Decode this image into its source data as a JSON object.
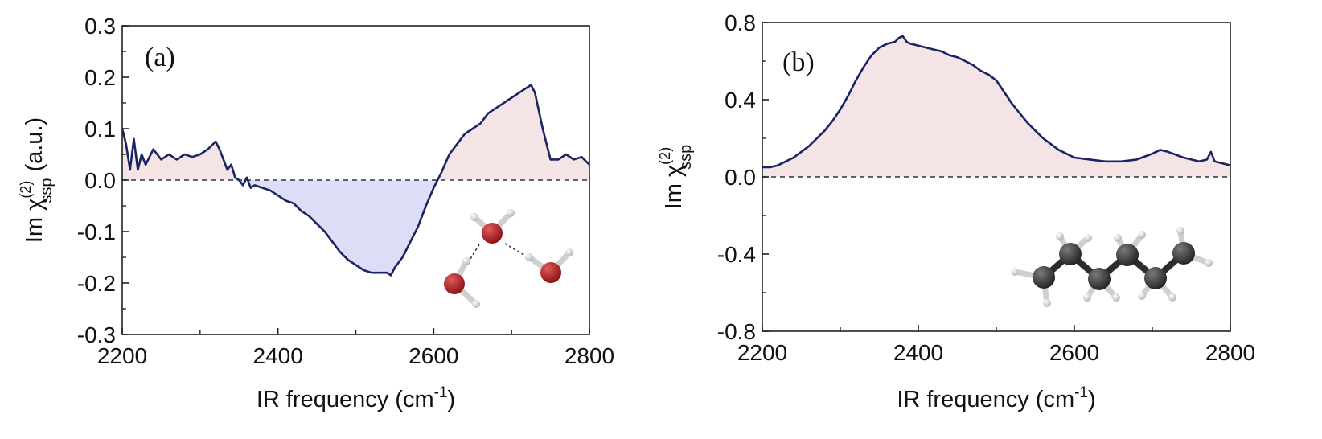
{
  "chart_data": [
    {
      "type": "line",
      "panel_label": "(a)",
      "xlabel": "IR frequency (cm",
      "xlabel_sup": "-1",
      "xlabel_end": ")",
      "ylabel_prefix": "Im χ",
      "ylabel_sup": "(2)",
      "ylabel_sub": "ssp",
      "ylabel_suffix": "(a.u.)",
      "xlim": [
        2200,
        2800
      ],
      "ylim": [
        -0.3,
        0.3
      ],
      "xticks": [
        "2200",
        "2400",
        "2600",
        "2800"
      ],
      "yticks": [
        "-0.3",
        "-0.2",
        "-0.1",
        "0.0",
        "0.1",
        "0.2",
        "0.3"
      ],
      "zero_line": true,
      "fill_positive": "#f5e4e6",
      "fill_negative": "#dcddf6",
      "line_color": "#1b2463",
      "inset": "water-molecules",
      "series": [
        {
          "name": "Im chi(2) ssp",
          "x": [
            2200,
            2205,
            2210,
            2215,
            2220,
            2225,
            2230,
            2240,
            2250,
            2260,
            2270,
            2280,
            2290,
            2300,
            2310,
            2320,
            2325,
            2330,
            2335,
            2340,
            2345,
            2350,
            2355,
            2360,
            2365,
            2370,
            2380,
            2390,
            2400,
            2410,
            2420,
            2430,
            2440,
            2450,
            2460,
            2470,
            2480,
            2490,
            2500,
            2510,
            2520,
            2530,
            2540,
            2545,
            2550,
            2560,
            2570,
            2580,
            2590,
            2600,
            2610,
            2620,
            2630,
            2640,
            2650,
            2660,
            2670,
            2680,
            2690,
            2700,
            2710,
            2720,
            2725,
            2730,
            2740,
            2750,
            2760,
            2770,
            2780,
            2790,
            2800
          ],
          "y": [
            0.1,
            0.07,
            0.02,
            0.08,
            0.02,
            0.05,
            0.03,
            0.06,
            0.04,
            0.05,
            0.04,
            0.05,
            0.045,
            0.05,
            0.06,
            0.075,
            0.06,
            0.04,
            0.02,
            0.03,
            0.005,
            0.0,
            -0.01,
            0.005,
            -0.015,
            -0.01,
            -0.015,
            -0.02,
            -0.03,
            -0.04,
            -0.045,
            -0.06,
            -0.07,
            -0.085,
            -0.1,
            -0.12,
            -0.14,
            -0.155,
            -0.165,
            -0.175,
            -0.18,
            -0.18,
            -0.18,
            -0.185,
            -0.17,
            -0.15,
            -0.12,
            -0.09,
            -0.05,
            -0.015,
            0.015,
            0.05,
            0.07,
            0.09,
            0.1,
            0.11,
            0.13,
            0.14,
            0.15,
            0.16,
            0.17,
            0.18,
            0.185,
            0.17,
            0.1,
            0.04,
            0.04,
            0.05,
            0.04,
            0.045,
            0.03
          ]
        }
      ]
    },
    {
      "type": "line",
      "panel_label": "(b)",
      "xlabel": "IR frequency (cm",
      "xlabel_sup": "-1",
      "xlabel_end": ")",
      "ylabel_prefix": "Im χ",
      "ylabel_sup": "(2)",
      "ylabel_sub": "ssp",
      "ylabel_suffix": "",
      "xlim": [
        2200,
        2800
      ],
      "ylim": [
        -0.8,
        0.8
      ],
      "xticks": [
        "2200",
        "2400",
        "2600",
        "2800"
      ],
      "yticks": [
        "-0.8",
        "-0.4",
        "0.0",
        "0.4",
        "0.8"
      ],
      "zero_line": true,
      "fill_positive": "#f5e4e6",
      "fill_negative": "#dcddf6",
      "line_color": "#1b2463",
      "inset": "alkane-chain",
      "series": [
        {
          "name": "Im chi(2) ssp",
          "x": [
            2200,
            2210,
            2220,
            2230,
            2240,
            2250,
            2260,
            2270,
            2280,
            2290,
            2300,
            2310,
            2320,
            2330,
            2340,
            2350,
            2360,
            2370,
            2375,
            2380,
            2385,
            2390,
            2400,
            2410,
            2420,
            2430,
            2440,
            2450,
            2460,
            2470,
            2480,
            2490,
            2500,
            2510,
            2520,
            2530,
            2540,
            2550,
            2560,
            2570,
            2580,
            2590,
            2600,
            2620,
            2640,
            2660,
            2680,
            2700,
            2710,
            2720,
            2740,
            2760,
            2770,
            2775,
            2780,
            2790,
            2800
          ],
          "y": [
            0.05,
            0.05,
            0.06,
            0.08,
            0.1,
            0.13,
            0.16,
            0.2,
            0.24,
            0.29,
            0.35,
            0.42,
            0.5,
            0.57,
            0.63,
            0.67,
            0.69,
            0.7,
            0.72,
            0.73,
            0.7,
            0.69,
            0.68,
            0.67,
            0.66,
            0.65,
            0.63,
            0.62,
            0.6,
            0.58,
            0.55,
            0.53,
            0.5,
            0.44,
            0.38,
            0.33,
            0.28,
            0.24,
            0.2,
            0.17,
            0.14,
            0.12,
            0.1,
            0.09,
            0.08,
            0.08,
            0.09,
            0.12,
            0.14,
            0.13,
            0.1,
            0.08,
            0.09,
            0.13,
            0.08,
            0.07,
            0.06
          ]
        }
      ]
    }
  ]
}
